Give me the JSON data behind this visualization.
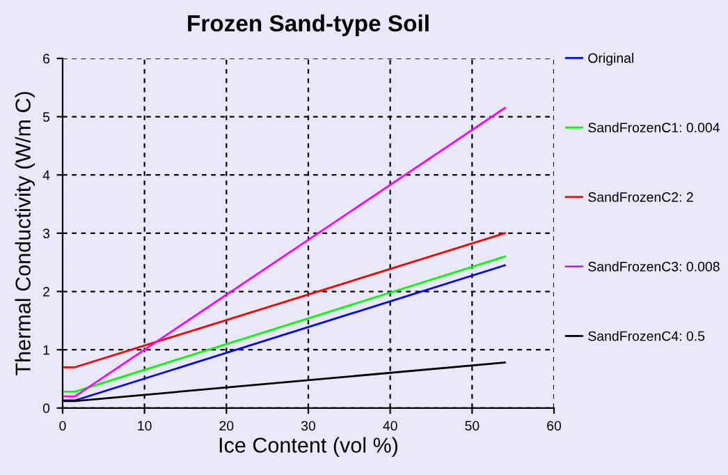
{
  "chart_data": {
    "type": "line",
    "title": "Frozen Sand-type Soil",
    "xlabel": "Ice Content (vol %)",
    "ylabel": "Thermal Conductivity (W/m C)",
    "x": [
      0.2,
      1.5,
      54
    ],
    "series": [
      {
        "name": "Original",
        "color": "#0000ff",
        "values": [
          0.13,
          0.13,
          2.45
        ]
      },
      {
        "name": "SandFrozenC1: 0.004",
        "color": "#00ff00",
        "values": [
          0.28,
          0.28,
          2.6
        ]
      },
      {
        "name": "SandFrozenC2: 2",
        "color": "#ff0000",
        "values": [
          0.7,
          0.7,
          3.0
        ]
      },
      {
        "name": "SandFrozenC3: 0.008",
        "color": "#ff00ff",
        "values": [
          0.2,
          0.2,
          5.15
        ]
      },
      {
        "name": "SandFrozenC4: 0.5",
        "color": "#000000",
        "values": [
          0.12,
          0.12,
          0.78
        ]
      }
    ],
    "xlim": [
      0,
      60
    ],
    "xticks": [
      0,
      10,
      20,
      30,
      40,
      50,
      60
    ],
    "ylim": [
      0,
      6
    ],
    "yticks": [
      0,
      1,
      2,
      3,
      4,
      5,
      6
    ],
    "grid": true,
    "legend": "right",
    "line_style": "solid",
    "marker": "none"
  }
}
